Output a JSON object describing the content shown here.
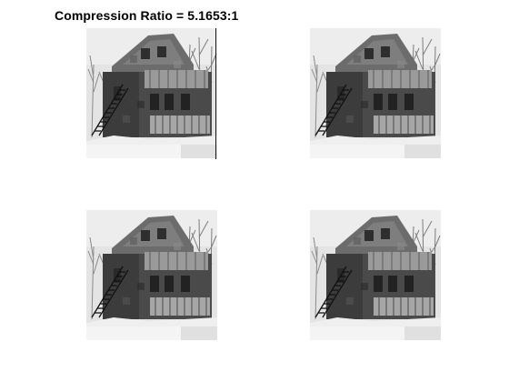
{
  "figure": {
    "title": "Compression Ratio = 5.1653:1",
    "background": "#ffffff"
  },
  "subplots": [
    {
      "name": "compressed-house-image",
      "image_content": "grayscale photo of a two-storey wooden house with balcony, exterior staircase, bare trees and snow"
    },
    {
      "name": "compressed-house-image",
      "image_content": "grayscale photo of a two-storey wooden house with balcony, exterior staircase, bare trees and snow"
    },
    {
      "name": "compressed-house-image",
      "image_content": "grayscale photo of a two-storey wooden house with balcony, exterior staircase, bare trees and snow"
    },
    {
      "name": "compressed-house-image",
      "image_content": "grayscale photo of a two-storey wooden house with balcony, exterior staircase, bare trees and snow"
    }
  ],
  "palette": {
    "sky": "#e6e6e6",
    "house_dark": "#3a3a3a",
    "house_mid": "#5e5e5e",
    "roof": "#6f6f6f",
    "snow": "#eeeeee",
    "trees": "#8c8c8c"
  }
}
